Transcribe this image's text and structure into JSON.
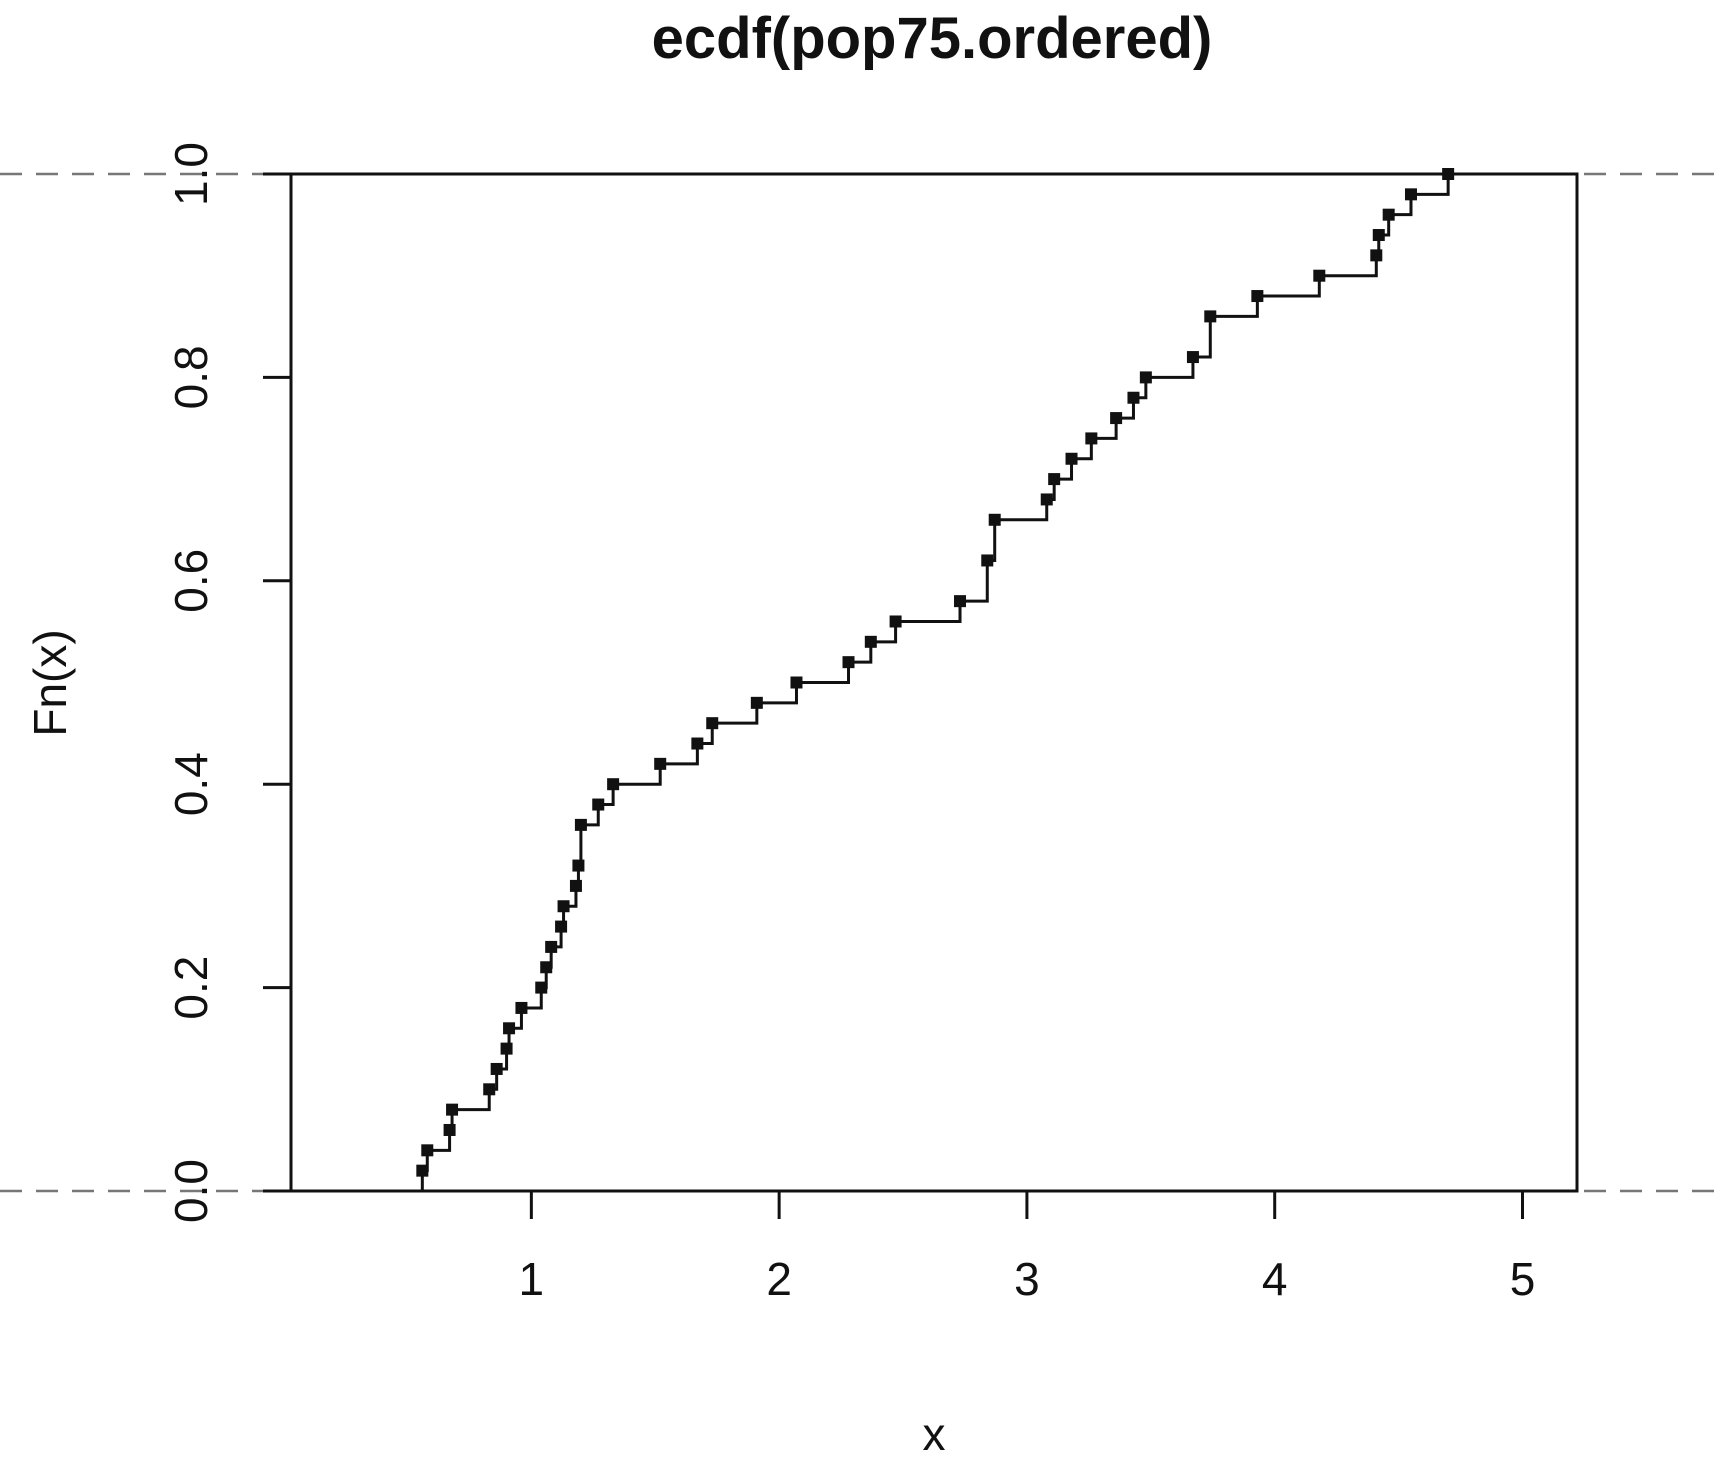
{
  "chart_data": {
    "type": "line",
    "subtype": "ecdf-step",
    "title": "ecdf(pop75.ordered)",
    "xlabel": "x",
    "ylabel": "Fn(x)",
    "xlim": [
      0.03,
      5.22
    ],
    "ylim": [
      0,
      1
    ],
    "x_ticks": [
      1,
      2,
      3,
      4,
      5
    ],
    "y_ticks": [
      0.0,
      0.2,
      0.4,
      0.6,
      0.8,
      1.0
    ],
    "y_tick_labels": [
      "0.0",
      "0.2",
      "0.4",
      "0.6",
      "0.8",
      "1.0"
    ],
    "x_tick_labels": [
      "1",
      "2",
      "3",
      "4",
      "5"
    ],
    "grid": false,
    "legend": "none",
    "reference_lines": [
      0,
      1
    ],
    "series": [
      {
        "x": [
          0.56,
          0.58,
          0.67,
          0.68,
          0.83,
          0.86,
          0.9,
          0.91,
          0.96,
          1.04,
          1.06,
          1.08,
          1.12,
          1.13,
          1.18,
          1.19,
          1.2,
          1.27,
          1.33,
          1.52,
          1.67,
          1.73,
          1.91,
          2.07,
          2.28,
          2.37,
          2.47,
          2.73,
          2.84,
          2.87,
          3.08,
          3.11,
          3.18,
          3.26,
          3.36,
          3.43,
          3.48,
          3.67,
          3.74,
          3.93,
          4.18,
          4.41,
          4.42,
          4.46,
          4.55,
          4.7
        ],
        "y": [
          0.02,
          0.04,
          0.06,
          0.08,
          0.1,
          0.12,
          0.14,
          0.16,
          0.18,
          0.2,
          0.22,
          0.24,
          0.26,
          0.28,
          0.3,
          0.32,
          0.36,
          0.38,
          0.4,
          0.42,
          0.44,
          0.46,
          0.48,
          0.5,
          0.52,
          0.54,
          0.56,
          0.58,
          0.62,
          0.66,
          0.68,
          0.7,
          0.72,
          0.74,
          0.76,
          0.78,
          0.8,
          0.82,
          0.86,
          0.88,
          0.9,
          0.92,
          0.94,
          0.96,
          0.98,
          1.0
        ]
      }
    ]
  }
}
